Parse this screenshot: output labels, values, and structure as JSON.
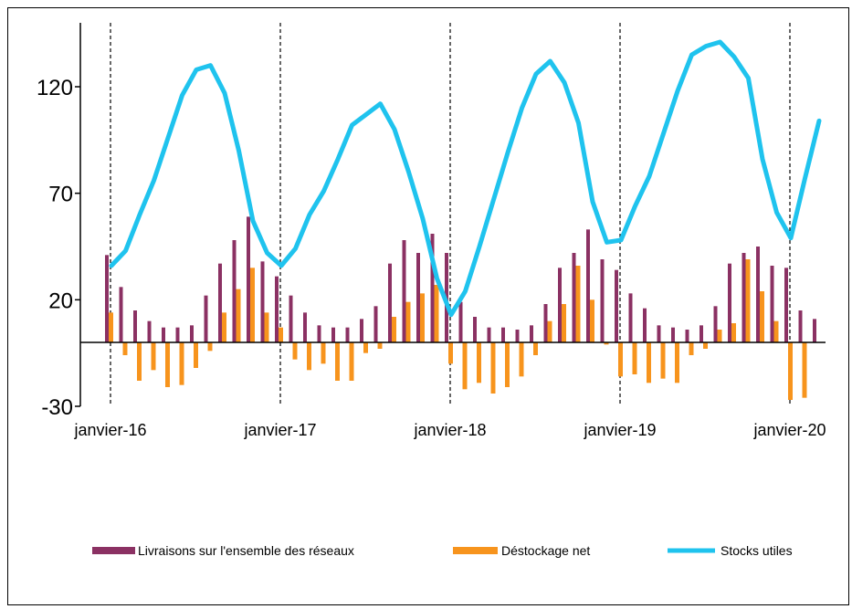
{
  "chart_data": {
    "type": "bar+line",
    "title": "",
    "xlabel": "",
    "ylabel": "",
    "ylim": [
      -30,
      150
    ],
    "yticks": [
      -30,
      20,
      70,
      120
    ],
    "x_tick_labels": [
      "janvier-16",
      "janvier-17",
      "janvier-18",
      "janvier-19",
      "janvier-20"
    ],
    "x_start_month": "2016-01",
    "n_months": 53,
    "vertical_lines": "dashed, at each janvier",
    "grid": false,
    "legend_position": "bottom",
    "colors": {
      "livraisons": "#8B3163",
      "destockage": "#F7941D",
      "stocks": "#1FC3EE"
    },
    "series": [
      {
        "name": "Livraisons sur l'ensemble des réseaux",
        "type": "bar",
        "values": [
          41,
          26,
          15,
          10,
          7,
          7,
          8,
          22,
          37,
          48,
          59,
          38,
          31,
          22,
          14,
          8,
          7,
          7,
          11,
          17,
          37,
          48,
          42,
          51,
          42,
          19,
          12,
          7,
          7,
          6,
          8,
          18,
          35,
          42,
          53,
          39,
          34,
          23,
          16,
          8,
          7,
          6,
          8,
          17,
          37,
          42,
          45,
          36,
          35,
          15,
          11,
          null,
          null
        ]
      },
      {
        "name": "Déstockage net",
        "type": "bar",
        "values": [
          14,
          -6,
          -18,
          -13,
          -21,
          -20,
          -12,
          -4,
          14,
          25,
          35,
          14,
          7,
          -8,
          -13,
          -10,
          -18,
          -18,
          -5,
          -3,
          12,
          19,
          23,
          27,
          -10,
          -22,
          -19,
          -24,
          -21,
          -16,
          -6,
          10,
          18,
          36,
          20,
          -1,
          -16,
          -15,
          -19,
          -17,
          -19,
          -6,
          -3,
          6,
          9,
          39,
          24,
          10,
          -27,
          -26,
          null,
          null,
          null
        ]
      },
      {
        "name": "Stocks utiles",
        "type": "line",
        "values": [
          36,
          43,
          60,
          76,
          96,
          116,
          128,
          130,
          117,
          90,
          57,
          42,
          36,
          44,
          60,
          71,
          86,
          102,
          107,
          112,
          100,
          80,
          58,
          30,
          13,
          24,
          45,
          67,
          89,
          110,
          126,
          132,
          122,
          103,
          66,
          47,
          48,
          64,
          78,
          98,
          118,
          135,
          139,
          141,
          134,
          124,
          86,
          61,
          49,
          77,
          104,
          null,
          null
        ]
      }
    ]
  }
}
